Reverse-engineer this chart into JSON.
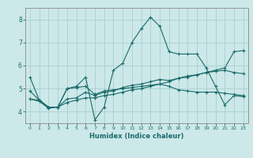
{
  "xlabel": "Humidex (Indice chaleur)",
  "ylabel": "",
  "bg_color": "#cce8e8",
  "grid_color": "#aad0d0",
  "line_color": "#1a6b6b",
  "spine_color": "#888888",
  "xlim": [
    -0.5,
    23.5
  ],
  "ylim": [
    3.5,
    8.5
  ],
  "xticks": [
    0,
    1,
    2,
    3,
    4,
    5,
    6,
    7,
    8,
    9,
    10,
    11,
    12,
    13,
    14,
    15,
    16,
    17,
    18,
    19,
    20,
    21,
    22,
    23
  ],
  "yticks": [
    4,
    5,
    6,
    7,
    8
  ],
  "series": [
    {
      "x": [
        0,
        1,
        2,
        3,
        4,
        5,
        6,
        7,
        8,
        9,
        10,
        11,
        12,
        13,
        14,
        15,
        16,
        17,
        18,
        19,
        20,
        21,
        22,
        23
      ],
      "y": [
        5.5,
        4.5,
        4.2,
        4.2,
        5.0,
        5.1,
        5.5,
        3.65,
        4.2,
        5.8,
        6.1,
        7.0,
        7.6,
        8.1,
        7.7,
        6.6,
        6.5,
        6.5,
        6.5,
        5.9,
        5.1,
        4.3,
        4.7,
        4.65
      ]
    },
    {
      "x": [
        0,
        1,
        2,
        3,
        4,
        5,
        6,
        7,
        8,
        9,
        10,
        11,
        12,
        13,
        14,
        15,
        16,
        17,
        18,
        19,
        20,
        21,
        22,
        23
      ],
      "y": [
        4.9,
        4.5,
        4.2,
        4.2,
        5.0,
        5.05,
        5.1,
        4.75,
        4.9,
        4.95,
        5.0,
        5.05,
        5.1,
        5.15,
        5.2,
        5.1,
        4.95,
        4.9,
        4.85,
        4.85,
        4.85,
        4.8,
        4.75,
        4.7
      ]
    },
    {
      "x": [
        0,
        1,
        2,
        3,
        4,
        5,
        6,
        7,
        8,
        9,
        10,
        11,
        12,
        13,
        14,
        15,
        16,
        17,
        18,
        19,
        20,
        21,
        22,
        23
      ],
      "y": [
        4.55,
        4.5,
        4.2,
        4.2,
        4.55,
        4.6,
        4.85,
        4.7,
        4.85,
        4.9,
        5.05,
        5.15,
        5.2,
        5.3,
        5.4,
        5.35,
        5.45,
        5.55,
        5.6,
        5.7,
        5.75,
        5.8,
        5.7,
        5.65
      ]
    },
    {
      "x": [
        0,
        1,
        2,
        3,
        4,
        5,
        6,
        7,
        8,
        9,
        10,
        11,
        12,
        13,
        14,
        15,
        16,
        17,
        18,
        19,
        20,
        21,
        22,
        23
      ],
      "y": [
        4.55,
        4.45,
        4.15,
        4.2,
        4.4,
        4.5,
        4.6,
        4.6,
        4.7,
        4.75,
        4.85,
        4.95,
        5.0,
        5.1,
        5.2,
        5.3,
        5.45,
        5.5,
        5.6,
        5.7,
        5.8,
        5.9,
        6.6,
        6.65
      ]
    }
  ]
}
